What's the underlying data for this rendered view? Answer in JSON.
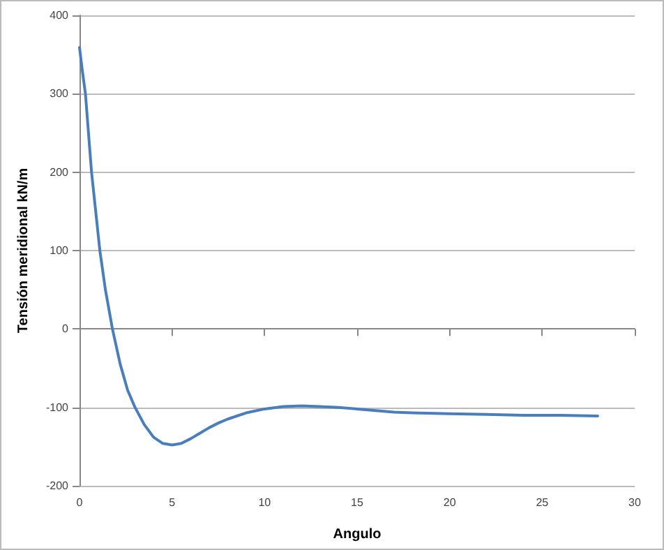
{
  "chart_data": {
    "type": "line",
    "xlabel": "Angulo",
    "ylabel": "Tensión meridional kN/m",
    "x": [
      0,
      0.15,
      0.32,
      0.65,
      1.1,
      1.4,
      1.78,
      2.2,
      2.6,
      3.0,
      3.5,
      4.0,
      4.5,
      5.0,
      5.5,
      6.0,
      6.5,
      7.0,
      7.5,
      8.0,
      9.0,
      10,
      11,
      12,
      13,
      14,
      15,
      16,
      17,
      18,
      20,
      22,
      24,
      26,
      28
    ],
    "series": [
      {
        "color": "#4a7ebb",
        "values": [
          359,
          330,
          300,
          200,
          100,
          50,
          0,
          -45,
          -78,
          -100,
          -122,
          -138,
          -146,
          -148,
          -146,
          -140,
          -133,
          -126,
          -120,
          -115,
          -107,
          -102,
          -99,
          -98,
          -99,
          -100,
          -102,
          -104,
          -106,
          -107,
          -108,
          -109,
          -110,
          -110,
          -111
        ]
      }
    ],
    "xlim": [
      0,
      30
    ],
    "xticks": [
      0,
      5,
      10,
      15,
      20,
      25,
      30
    ],
    "ylim": [
      -200,
      400
    ],
    "yticks": [
      -200,
      -100,
      0,
      100,
      200,
      300,
      400
    ],
    "grid": "y",
    "marker": "none",
    "line_style": "solid"
  }
}
